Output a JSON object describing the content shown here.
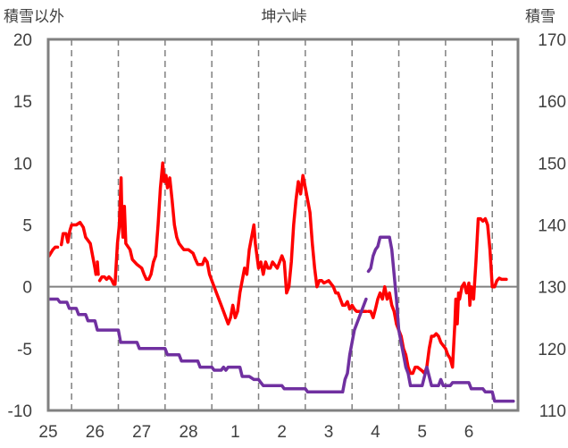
{
  "chart_data": {
    "type": "line",
    "title": "坤六峠",
    "left_axis": {
      "label": "積雪以外",
      "range": [
        -10,
        20
      ],
      "ticks": [
        20,
        15,
        10,
        5,
        0,
        -5,
        -10
      ],
      "tick_labels": [
        "20",
        "15",
        "10",
        "5",
        "0",
        "-5",
        "-10"
      ]
    },
    "right_axis": {
      "label": "積雪",
      "range": [
        110,
        170
      ],
      "ticks": [
        170,
        160,
        150,
        140,
        130,
        120,
        110
      ],
      "tick_labels": [
        "170",
        "160",
        "150",
        "140",
        "130",
        "120",
        "110"
      ]
    },
    "x_axis": {
      "range": [
        24.5,
        34.55
      ],
      "ticks": [
        25,
        26,
        27,
        28,
        29,
        30,
        31,
        32,
        33,
        34
      ],
      "tick_labels": [
        "25",
        "26",
        "27",
        "28",
        "1",
        "2",
        "3",
        "4",
        "5",
        "6"
      ]
    },
    "grid": {
      "vertical": "dashed",
      "horizontal": "none",
      "zero_line": true
    },
    "colors": {
      "temperature": "#ff0000",
      "snow": "#7030a0",
      "frame": "#808080",
      "grid": "#808080"
    },
    "series": [
      {
        "axis": "left",
        "color": "#ff0000",
        "segments": [
          [
            [
              24.52,
              2.5
            ],
            [
              24.6,
              3.0
            ],
            [
              24.65,
              3.2
            ],
            [
              24.7,
              3.2
            ]
          ],
          [
            [
              24.78,
              3.4
            ],
            [
              24.82,
              4.3
            ],
            [
              24.88,
              4.3
            ],
            [
              24.92,
              3.6
            ],
            [
              24.96,
              4.5
            ],
            [
              25.0,
              5.0
            ],
            [
              25.1,
              5.0
            ],
            [
              25.18,
              5.2
            ],
            [
              25.25,
              4.8
            ],
            [
              25.3,
              4.0
            ],
            [
              25.4,
              3.5
            ],
            [
              25.45,
              2.5
            ],
            [
              25.5,
              1.5
            ],
            [
              25.52,
              1.0
            ]
          ],
          [
            [
              25.55,
              2.0
            ],
            [
              25.57,
              1.0
            ]
          ],
          [
            [
              25.6,
              0.5
            ],
            [
              25.65,
              0.8
            ],
            [
              25.7,
              0.8
            ],
            [
              25.75,
              0.6
            ],
            [
              25.8,
              0.8
            ],
            [
              25.85,
              0.6
            ],
            [
              25.9,
              0.2
            ],
            [
              25.93,
              0.2
            ],
            [
              25.98,
              3.5
            ],
            [
              26.02,
              5.0
            ],
            [
              26.06,
              8.8
            ],
            [
              26.08,
              5.0
            ],
            [
              26.1,
              4.0
            ],
            [
              26.13,
              6.5
            ],
            [
              26.16,
              3.5
            ],
            [
              26.25,
              3.0
            ],
            [
              26.3,
              2.2
            ],
            [
              26.4,
              1.8
            ],
            [
              26.5,
              1.5
            ],
            [
              26.55,
              1.0
            ],
            [
              26.6,
              0.6
            ],
            [
              26.65,
              0.6
            ],
            [
              26.7,
              1.0
            ],
            [
              26.75,
              2.0
            ],
            [
              26.8,
              2.5
            ],
            [
              26.85,
              5.0
            ],
            [
              26.9,
              8.0
            ],
            [
              26.95,
              10.0
            ],
            [
              26.98,
              8.5
            ],
            [
              27.02,
              9.0
            ],
            [
              27.05,
              8.0
            ],
            [
              27.1,
              8.8
            ],
            [
              27.15,
              7.0
            ],
            [
              27.2,
              5.0
            ],
            [
              27.25,
              4.0
            ],
            [
              27.3,
              3.5
            ],
            [
              27.4,
              3.0
            ],
            [
              27.5,
              3.0
            ],
            [
              27.6,
              2.7
            ],
            [
              27.65,
              2.2
            ],
            [
              27.7,
              1.8
            ],
            [
              27.8,
              1.8
            ],
            [
              27.85,
              2.3
            ],
            [
              27.9,
              2.0
            ],
            [
              27.95,
              1.0
            ],
            [
              28.0,
              0.5
            ],
            [
              28.1,
              -0.5
            ],
            [
              28.2,
              -1.5
            ],
            [
              28.3,
              -2.5
            ],
            [
              28.35,
              -3.0
            ],
            [
              28.4,
              -2.5
            ],
            [
              28.45,
              -1.5
            ],
            [
              28.5,
              -2.5
            ],
            [
              28.55,
              -2.0
            ],
            [
              28.6,
              -0.5
            ],
            [
              28.7,
              1.5
            ],
            [
              28.75,
              1.0
            ],
            [
              28.8,
              3.0
            ],
            [
              28.85,
              4.0
            ],
            [
              28.9,
              5.0
            ],
            [
              28.93,
              3.5
            ],
            [
              29.0,
              1.5
            ],
            [
              29.05,
              2.0
            ],
            [
              29.1,
              1.0
            ],
            [
              29.15,
              2.0
            ],
            [
              29.2,
              1.5
            ],
            [
              29.25,
              1.5
            ],
            [
              29.3,
              2.0
            ],
            [
              29.4,
              1.5
            ],
            [
              29.45,
              2.0
            ],
            [
              29.5,
              2.5
            ],
            [
              29.55,
              2.0
            ],
            [
              29.6,
              -0.5
            ],
            [
              29.65,
              0.0
            ],
            [
              29.7,
              2.0
            ],
            [
              29.75,
              5.0
            ],
            [
              29.8,
              7.0
            ],
            [
              29.85,
              8.5
            ],
            [
              29.9,
              7.5
            ],
            [
              29.95,
              9.0
            ],
            [
              30.0,
              8.0
            ],
            [
              30.1,
              6.0
            ],
            [
              30.15,
              3.5
            ],
            [
              30.2,
              1.5
            ],
            [
              30.25,
              0.0
            ],
            [
              30.3,
              0.5
            ],
            [
              30.35,
              0.5
            ],
            [
              30.4,
              0.3
            ],
            [
              30.5,
              0.5
            ],
            [
              30.6,
              0.0
            ],
            [
              30.65,
              -0.5
            ],
            [
              30.7,
              -0.5
            ],
            [
              30.75,
              -1.0
            ],
            [
              30.8,
              -1.5
            ],
            [
              30.85,
              -1.5
            ],
            [
              30.9,
              -1.2
            ],
            [
              30.95,
              -1.8
            ],
            [
              31.0,
              -1.5
            ],
            [
              31.05,
              -1.8
            ],
            [
              31.1,
              -2.0
            ],
            [
              31.15,
              -2.0
            ],
            [
              31.2,
              -2.0
            ],
            [
              31.3,
              -2.0
            ]
          ],
          [
            [
              31.35,
              -2.0
            ],
            [
              31.4,
              -2.0
            ],
            [
              31.45,
              -2.5
            ],
            [
              31.5,
              -1.8
            ],
            [
              31.55,
              -1.0
            ],
            [
              31.6,
              -0.5
            ],
            [
              31.65,
              -1.0
            ],
            [
              31.7,
              0.0
            ],
            [
              31.75,
              -1.0
            ],
            [
              31.8,
              -0.5
            ],
            [
              31.85,
              -1.5
            ],
            [
              31.9,
              -2.0
            ],
            [
              31.95,
              -3.0
            ],
            [
              32.0,
              -3.5
            ],
            [
              32.05,
              -4.0
            ],
            [
              32.1,
              -5.0
            ],
            [
              32.15,
              -5.5
            ],
            [
              32.2,
              -6.5
            ],
            [
              32.25,
              -7.0
            ],
            [
              32.3,
              -7.0
            ],
            [
              32.35,
              -6.5
            ],
            [
              32.4,
              -6.5
            ],
            [
              32.5,
              -6.8
            ],
            [
              32.55,
              -7.0
            ],
            [
              32.6,
              -6.5
            ],
            [
              32.65,
              -5.0
            ],
            [
              32.7,
              -4.0
            ],
            [
              32.75,
              -4.0
            ],
            [
              32.8,
              -3.8
            ],
            [
              32.85,
              -4.0
            ],
            [
              32.9,
              -4.5
            ],
            [
              33.0,
              -5.0
            ],
            [
              33.05,
              -5.5
            ],
            [
              33.1,
              -5.8
            ],
            [
              33.15,
              -6.5
            ],
            [
              33.2,
              -3.0
            ],
            [
              33.22,
              -1.0
            ],
            [
              33.25,
              -3.0
            ],
            [
              33.28,
              -0.5
            ],
            [
              33.3,
              -1.0
            ],
            [
              33.35,
              0.0
            ],
            [
              33.4,
              0.3
            ],
            [
              33.45,
              -0.5
            ],
            [
              33.5,
              0.3
            ],
            [
              33.52,
              -1.5
            ],
            [
              33.55,
              0.0
            ],
            [
              33.6,
              -1.0
            ],
            [
              33.65,
              2.0
            ],
            [
              33.7,
              5.5
            ],
            [
              33.75,
              5.5
            ],
            [
              33.8,
              5.3
            ],
            [
              33.85,
              5.5
            ],
            [
              33.9,
              5.0
            ],
            [
              33.95,
              3.0
            ],
            [
              34.0,
              0.0
            ],
            [
              34.05,
              0.0
            ],
            [
              34.1,
              0.5
            ],
            [
              34.15,
              0.7
            ],
            [
              34.2,
              0.6
            ],
            [
              34.3,
              0.6
            ]
          ]
        ]
      },
      {
        "axis": "right",
        "color": "#7030a0",
        "segments": [
          [
            [
              24.52,
              128.0
            ],
            [
              24.7,
              128.0
            ],
            [
              24.75,
              127.5
            ],
            [
              24.9,
              127.5
            ],
            [
              24.95,
              126.5
            ],
            [
              25.1,
              126.5
            ],
            [
              25.15,
              125.5
            ],
            [
              25.3,
              125.5
            ],
            [
              25.35,
              124.5
            ],
            [
              25.5,
              124.5
            ],
            [
              25.55,
              123.0
            ],
            [
              26.0,
              123.0
            ],
            [
              26.05,
              121.0
            ],
            [
              26.4,
              121.0
            ],
            [
              26.45,
              120.0
            ],
            [
              27.0,
              120.0
            ],
            [
              27.05,
              119.0
            ],
            [
              27.3,
              119.0
            ],
            [
              27.35,
              118.0
            ],
            [
              27.7,
              118.0
            ],
            [
              27.75,
              117.0
            ],
            [
              28.0,
              117.0
            ],
            [
              28.05,
              116.5
            ],
            [
              28.2,
              116.5
            ],
            [
              28.25,
              117.0
            ],
            [
              28.3,
              116.5
            ],
            [
              28.35,
              117.0
            ],
            [
              28.6,
              117.0
            ],
            [
              28.65,
              115.5
            ],
            [
              28.8,
              115.5
            ],
            [
              28.9,
              115.0
            ],
            [
              29.0,
              115.0
            ],
            [
              29.05,
              114.5
            ],
            [
              29.1,
              114.0
            ],
            [
              29.5,
              114.0
            ],
            [
              29.55,
              113.5
            ],
            [
              30.0,
              113.5
            ],
            [
              30.05,
              113.0
            ],
            [
              30.8,
              113.0
            ],
            [
              30.85,
              115.0
            ],
            [
              30.9,
              116.0
            ],
            [
              30.95,
              119.0
            ],
            [
              31.0,
              121.0
            ],
            [
              31.05,
              123.0
            ],
            [
              31.1,
              124.0
            ],
            [
              31.2,
              126.0
            ],
            [
              31.3,
              128.0
            ]
          ],
          [
            [
              31.35,
              132.5
            ],
            [
              31.4,
              133.0
            ],
            [
              31.45,
              135.0
            ],
            [
              31.5,
              136.0
            ],
            [
              31.55,
              136.5
            ],
            [
              31.6,
              138.0
            ],
            [
              31.8,
              138.0
            ],
            [
              31.85,
              136.0
            ],
            [
              31.9,
              132.0
            ],
            [
              31.95,
              128.0
            ],
            [
              32.0,
              123.0
            ],
            [
              32.1,
              119.0
            ],
            [
              32.15,
              117.0
            ],
            [
              32.2,
              116.0
            ],
            [
              32.25,
              114.0
            ],
            [
              32.5,
              114.0
            ],
            [
              32.55,
              115.5
            ],
            [
              32.6,
              117.0
            ],
            [
              32.65,
              115.5
            ],
            [
              32.7,
              114.0
            ],
            [
              32.85,
              114.0
            ],
            [
              32.9,
              115.0
            ],
            [
              32.95,
              114.0
            ],
            [
              33.1,
              114.0
            ],
            [
              33.15,
              114.5
            ],
            [
              33.5,
              114.5
            ],
            [
              33.55,
              113.5
            ],
            [
              33.8,
              113.5
            ],
            [
              33.85,
              113.0
            ],
            [
              34.0,
              113.0
            ],
            [
              34.05,
              111.5
            ],
            [
              34.45,
              111.5
            ]
          ]
        ]
      }
    ]
  }
}
